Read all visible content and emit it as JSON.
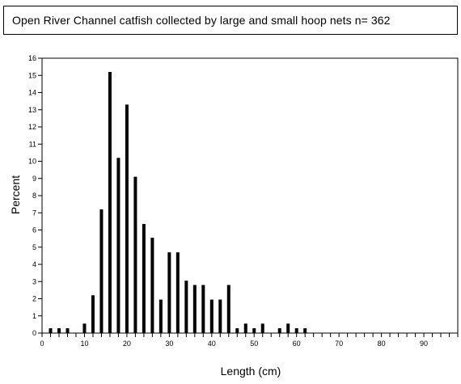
{
  "chart_data": {
    "type": "bar",
    "title": "Open River Channel catfish collected by large and small hoop nets n= 362",
    "xlabel": "Length (cm)",
    "ylabel": "Percent",
    "xlim": [
      0,
      98
    ],
    "ylim": [
      0,
      16
    ],
    "x_ticks": [
      0,
      10,
      20,
      30,
      40,
      50,
      60,
      70,
      80,
      90
    ],
    "y_ticks": [
      0,
      1,
      2,
      3,
      4,
      5,
      6,
      7,
      8,
      9,
      10,
      11,
      12,
      13,
      14,
      15,
      16
    ],
    "bars": [
      {
        "x": 2,
        "value": 0.28
      },
      {
        "x": 4,
        "value": 0.28
      },
      {
        "x": 6,
        "value": 0.28
      },
      {
        "x": 10,
        "value": 0.55
      },
      {
        "x": 12,
        "value": 2.2
      },
      {
        "x": 14,
        "value": 7.2
      },
      {
        "x": 16,
        "value": 15.2
      },
      {
        "x": 18,
        "value": 10.2
      },
      {
        "x": 20,
        "value": 13.3
      },
      {
        "x": 22,
        "value": 9.1
      },
      {
        "x": 24,
        "value": 6.35
      },
      {
        "x": 26,
        "value": 5.55
      },
      {
        "x": 28,
        "value": 1.95
      },
      {
        "x": 30,
        "value": 4.7
      },
      {
        "x": 32,
        "value": 4.7
      },
      {
        "x": 34,
        "value": 3.05
      },
      {
        "x": 36,
        "value": 2.8
      },
      {
        "x": 38,
        "value": 2.8
      },
      {
        "x": 40,
        "value": 1.95
      },
      {
        "x": 42,
        "value": 1.95
      },
      {
        "x": 44,
        "value": 2.8
      },
      {
        "x": 46,
        "value": 0.28
      },
      {
        "x": 48,
        "value": 0.55
      },
      {
        "x": 50,
        "value": 0.28
      },
      {
        "x": 52,
        "value": 0.55
      },
      {
        "x": 56,
        "value": 0.28
      },
      {
        "x": 58,
        "value": 0.55
      },
      {
        "x": 60,
        "value": 0.28
      },
      {
        "x": 62,
        "value": 0.28
      }
    ],
    "bar_color": "#000000",
    "grid": false
  }
}
